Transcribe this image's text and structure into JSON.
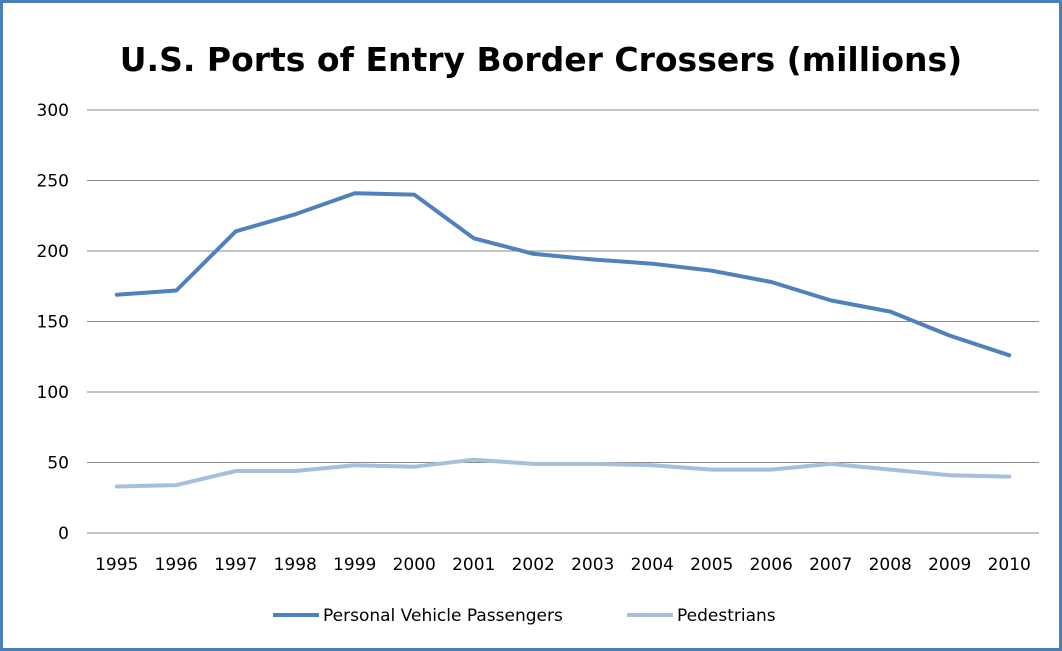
{
  "chart_data": {
    "type": "line",
    "title": "U.S. Ports of Entry Border Crossers (millions)",
    "xlabel": "",
    "ylabel": "",
    "x": [
      "1995",
      "1996",
      "1997",
      "1998",
      "1999",
      "2000",
      "2001",
      "2002",
      "2003",
      "2004",
      "2005",
      "2006",
      "2007",
      "2008",
      "2009",
      "2010"
    ],
    "ylim": [
      0,
      300
    ],
    "yticks": [
      "0",
      "50",
      "100",
      "150",
      "200",
      "250",
      "300"
    ],
    "grid": true,
    "legend_position": "bottom",
    "series": [
      {
        "name": "Personal Vehicle Passengers",
        "color": "#4f81bd",
        "values": [
          169,
          172,
          214,
          226,
          241,
          240,
          209,
          198,
          194,
          191,
          186,
          178,
          165,
          157,
          140,
          126
        ]
      },
      {
        "name": "Pedestrians",
        "color": "#a7bfde",
        "values": [
          33,
          34,
          44,
          44,
          48,
          47,
          52,
          49,
          49,
          48,
          45,
          45,
          49,
          45,
          41,
          40
        ]
      }
    ]
  }
}
